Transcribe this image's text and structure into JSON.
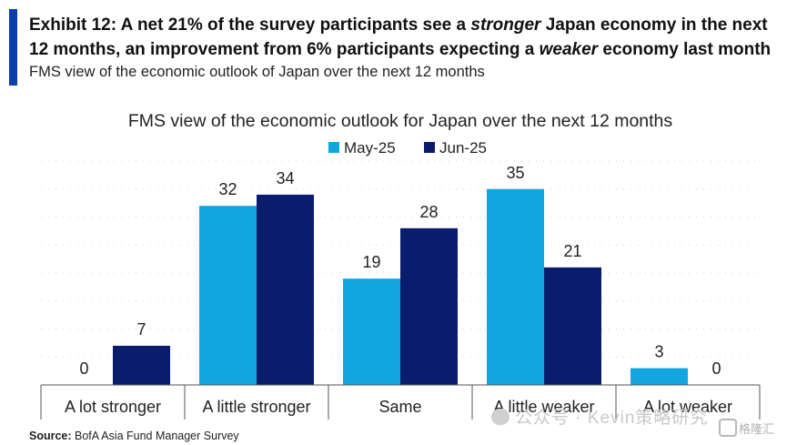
{
  "header": {
    "title_parts": {
      "p1": "Exhibit 12: A net 21% of the survey participants see a ",
      "e1": "stronger",
      "p2": " Japan economy in the next 12 months, an improvement from 6% participants expecting a ",
      "e2": "weaker",
      "p3": " economy last month"
    },
    "subtitle": "FMS view of the economic outlook of Japan over the next 12 months"
  },
  "source": {
    "label": "Source:",
    "text": " BofA Asia Fund Manager Survey"
  },
  "watermark": {
    "text": "公众号 · Kevin策略研究",
    "badge": "格隆汇"
  },
  "colors": {
    "may": "#12a6e0",
    "jun": "#0a1d6c",
    "accent": "#0a3ea8"
  },
  "chart_data": {
    "type": "bar",
    "title": "FMS view of the economic outlook for Japan over the next 12 months",
    "categories": [
      "A lot stronger",
      "A little stronger",
      "Same",
      "A little weaker",
      "A lot weaker"
    ],
    "series": [
      {
        "name": "May-25",
        "values": [
          0,
          32,
          19,
          35,
          3
        ]
      },
      {
        "name": "Jun-25",
        "values": [
          7,
          34,
          28,
          21,
          0
        ]
      }
    ],
    "ylim": [
      0,
      40
    ],
    "grid": true,
    "legend": "top-center",
    "xlabel": "",
    "ylabel": ""
  }
}
